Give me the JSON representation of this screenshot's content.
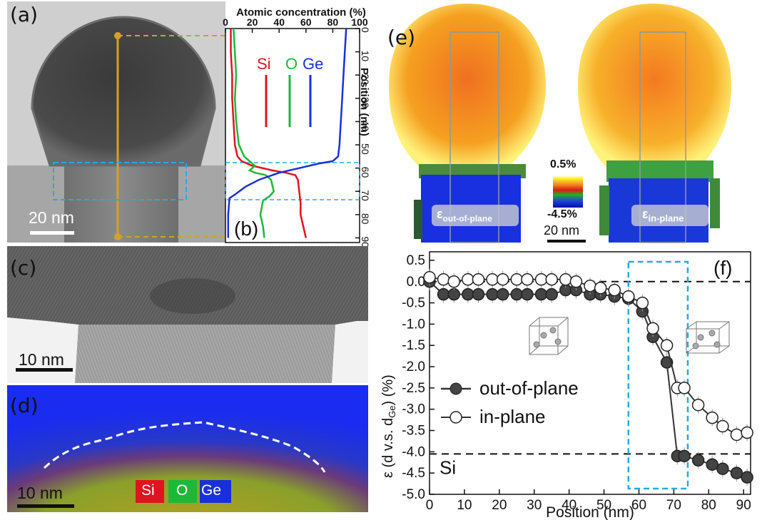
{
  "panels": {
    "a": {
      "label": "(a)",
      "scalebar": "20 nm"
    },
    "b": {
      "label": "(b)",
      "top_axis_title": "Atomic concentration (%)",
      "x_ticks": [
        "0",
        "20",
        "40",
        "60",
        "80",
        "100"
      ],
      "right_axis_title": "Position (nm)",
      "y_ticks": [
        "0",
        "10",
        "20",
        "30",
        "40",
        "50",
        "60",
        "70",
        "80",
        "90"
      ],
      "legend": {
        "si": "Si",
        "o": "O",
        "ge": "Ge"
      }
    },
    "c": {
      "label": "(c)",
      "scalebar": "10 nm"
    },
    "d": {
      "label": "(d)",
      "scalebar": "10 nm",
      "legend": {
        "si": "Si",
        "o": "O",
        "ge": "Ge"
      }
    },
    "e": {
      "label": "(e)",
      "left_caption": "ε",
      "left_caption_sub": "out-of-plane",
      "right_caption": "ε",
      "right_caption_sub": "in-plane",
      "cbar_max": "0.5%",
      "cbar_min": "-4.5%",
      "scalebar": "20 nm"
    },
    "f": {
      "label": "(f)"
    }
  },
  "colors": {
    "si": "#e0141e",
    "o": "#1db83a",
    "ge": "#1930d8",
    "gold": "#d4a02a",
    "cyan": "#2aa8e0"
  },
  "chart_data": [
    {
      "type": "line",
      "panel": "b",
      "xlabel": "Atomic concentration (%)",
      "ylabel": "Position (nm)",
      "xlim": [
        0,
        100
      ],
      "ylim": [
        0,
        92
      ],
      "series": [
        {
          "name": "Si",
          "color": "#e0141e",
          "points": [
            [
              4,
              0
            ],
            [
              4,
              10
            ],
            [
              5,
              20
            ],
            [
              5,
              30
            ],
            [
              6,
              40
            ],
            [
              7,
              50
            ],
            [
              9,
              55
            ],
            [
              12,
              57
            ],
            [
              20,
              59
            ],
            [
              35,
              61
            ],
            [
              45,
              62
            ],
            [
              52,
              63
            ],
            [
              54,
              65
            ],
            [
              55,
              70
            ],
            [
              56,
              75
            ],
            [
              56,
              80
            ],
            [
              58,
              85
            ],
            [
              60,
              90
            ]
          ]
        },
        {
          "name": "O",
          "color": "#1db83a",
          "points": [
            [
              6,
              0
            ],
            [
              7,
              10
            ],
            [
              8,
              20
            ],
            [
              7,
              30
            ],
            [
              8,
              40
            ],
            [
              10,
              50
            ],
            [
              14,
              55
            ],
            [
              18,
              57
            ],
            [
              22,
              59
            ],
            [
              20,
              60
            ],
            [
              18,
              61
            ],
            [
              22,
              62
            ],
            [
              30,
              63
            ],
            [
              34,
              65
            ],
            [
              36,
              70
            ],
            [
              33,
              72
            ],
            [
              28,
              74
            ],
            [
              26,
              80
            ],
            [
              28,
              85
            ],
            [
              29,
              90
            ]
          ]
        },
        {
          "name": "Ge",
          "color": "#1930d8",
          "points": [
            [
              90,
              0
            ],
            [
              89,
              10
            ],
            [
              88,
              20
            ],
            [
              87,
              30
            ],
            [
              86,
              40
            ],
            [
              85,
              50
            ],
            [
              84,
              55
            ],
            [
              80,
              57
            ],
            [
              70,
              58
            ],
            [
              55,
              60
            ],
            [
              40,
              62
            ],
            [
              25,
              65
            ],
            [
              15,
              68
            ],
            [
              8,
              71
            ],
            [
              3,
              73
            ],
            [
              2,
              80
            ],
            [
              2,
              90
            ]
          ]
        }
      ]
    },
    {
      "type": "scatter",
      "panel": "f",
      "xlabel": "Position (nm)",
      "ylabel": "ε (d v.s. d",
      "ylabel_sub": "Ge",
      "ylabel_end": ") (%)",
      "xlim": [
        0,
        92
      ],
      "ylim": [
        -5.0,
        0.7
      ],
      "x_ticks": [
        "0",
        "10",
        "20",
        "30",
        "40",
        "50",
        "60",
        "70",
        "80",
        "90"
      ],
      "y_ticks": [
        "0.5",
        "0.0",
        "-0.5",
        "-1.0",
        "-1.5",
        "-2.0",
        "-2.5",
        "-3.0",
        "-3.5",
        "-4.0",
        "-4.5",
        "-5.0"
      ],
      "hlines": [
        {
          "y": 0.0,
          "label": ""
        },
        {
          "y": -4.05,
          "label": "Si"
        }
      ],
      "box_x": [
        57,
        74
      ],
      "series": [
        {
          "name": "out-of-plane",
          "style": "filled",
          "x": [
            0,
            4,
            7,
            11,
            14,
            18,
            21,
            25,
            28,
            32,
            35,
            39,
            42,
            46,
            49,
            53,
            57,
            61,
            64,
            68,
            71,
            73,
            77,
            81,
            84,
            88,
            91
          ],
          "y": [
            0.0,
            -0.3,
            -0.3,
            -0.3,
            -0.3,
            -0.3,
            -0.3,
            -0.3,
            -0.3,
            -0.3,
            -0.3,
            -0.2,
            -0.2,
            -0.3,
            -0.3,
            -0.35,
            -0.4,
            -0.7,
            -1.3,
            -1.9,
            -4.1,
            -4.1,
            -4.2,
            -4.3,
            -4.4,
            -4.5,
            -4.6
          ]
        },
        {
          "name": "in-plane",
          "style": "open",
          "x": [
            0,
            4,
            7,
            11,
            14,
            18,
            21,
            25,
            28,
            32,
            35,
            39,
            42,
            46,
            49,
            53,
            57,
            61,
            64,
            68,
            71,
            73,
            77,
            81,
            84,
            88,
            91
          ],
          "y": [
            0.1,
            0.05,
            0.0,
            0.05,
            0.05,
            0.05,
            0.05,
            0.05,
            0.05,
            0.05,
            0.05,
            0.05,
            0.0,
            -0.1,
            -0.15,
            -0.2,
            -0.35,
            -0.5,
            -1.1,
            -1.5,
            -2.5,
            -2.5,
            -2.9,
            -3.2,
            -3.4,
            -3.6,
            -3.55
          ]
        }
      ],
      "legend": [
        "out-of-plane",
        "in-plane"
      ]
    }
  ]
}
